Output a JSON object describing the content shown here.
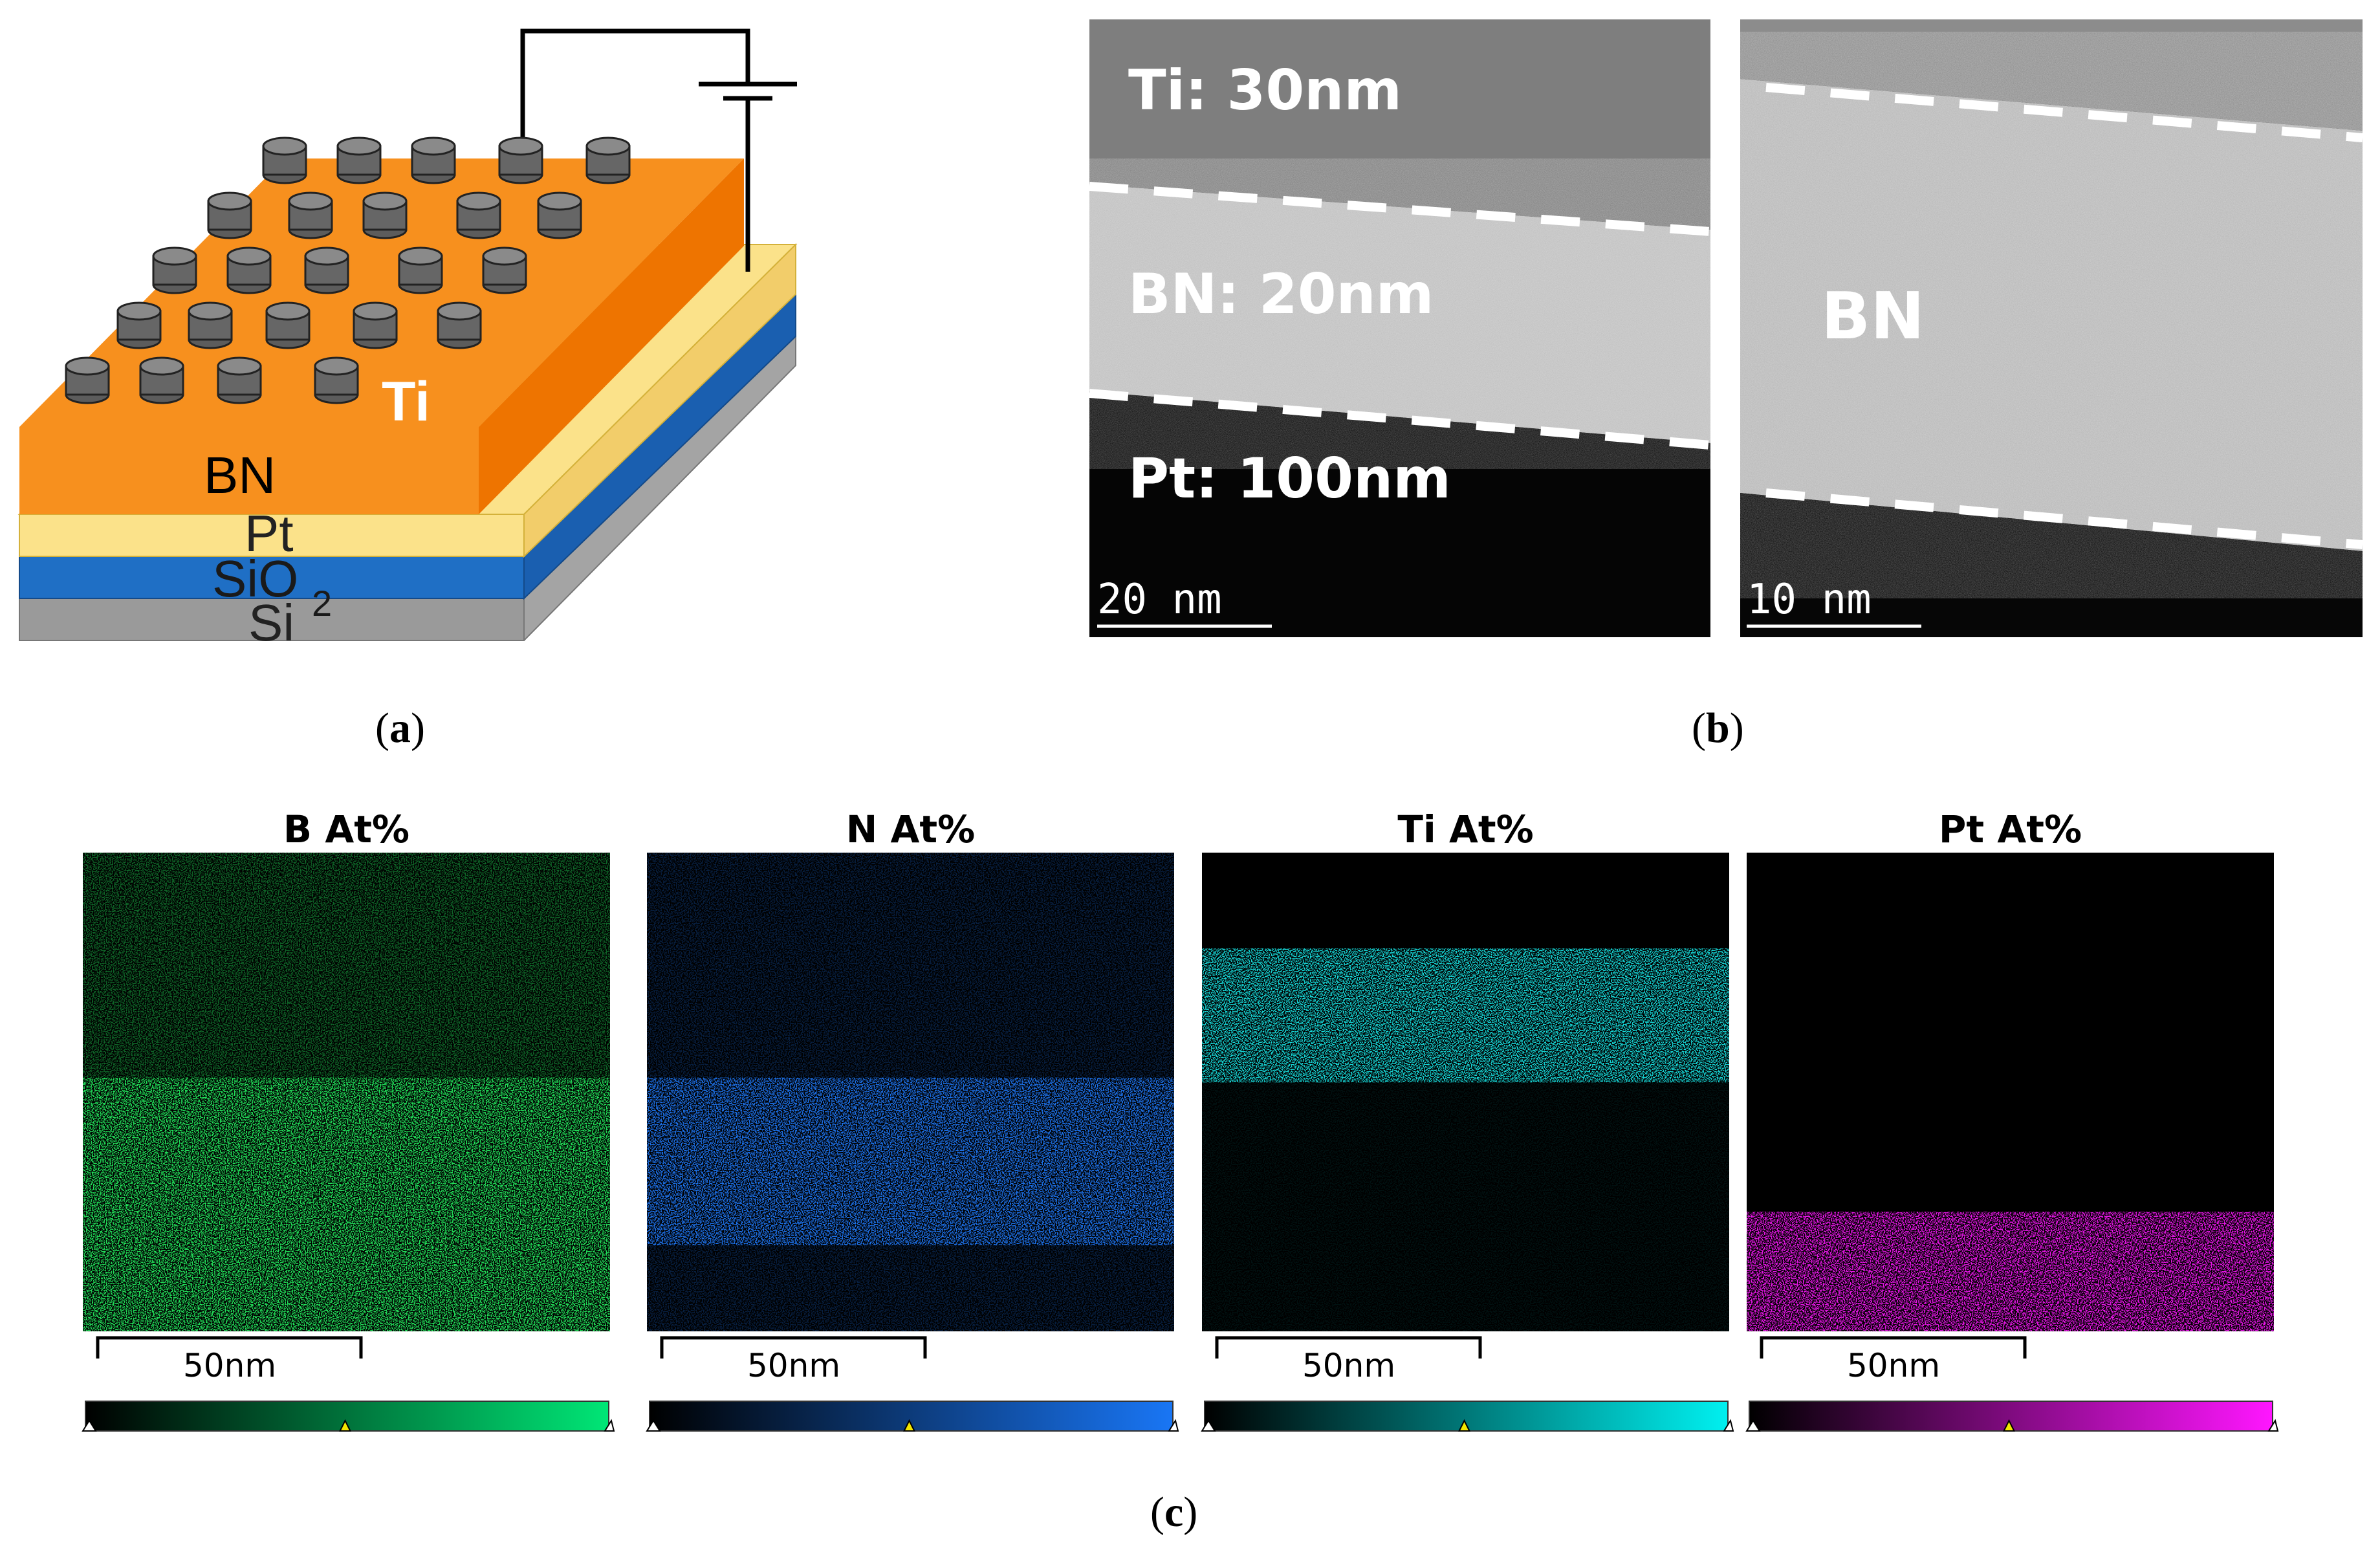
{
  "panel_a": {
    "labels": {
      "top_layer": "BN",
      "electrode": "Ti",
      "bottom_electrode": "Pt",
      "oxide": "SiO",
      "oxide_subscript": "2",
      "substrate": "Si"
    },
    "colors": {
      "bn": "#f7901e",
      "pt": "#fbe28a",
      "sio2": "#1f6fc5",
      "si": "#9a9a9a",
      "pad": "#6b6b6b"
    },
    "caption": "a"
  },
  "panel_b": {
    "left_image": {
      "label_top": "Ti: 30nm",
      "label_middle": "BN: 20nm",
      "label_bottom": "Pt: 100nm",
      "scale": "20 nm"
    },
    "right_image": {
      "label": "BN",
      "scale": "10 nm"
    },
    "caption": "b"
  },
  "panel_c": {
    "maps": [
      {
        "title": "B At%",
        "scale": "50nm",
        "color": "#22e05a",
        "scale_gradient_end": "#00e676"
      },
      {
        "title": "N At%",
        "scale": "50nm",
        "color": "#1f6fe6",
        "scale_gradient_end": "#1976f5"
      },
      {
        "title": "Ti At%",
        "scale": "50nm",
        "color": "#18d6d6",
        "scale_gradient_end": "#00f0f0"
      },
      {
        "title": "Pt At%",
        "scale": "50nm",
        "color": "#ea18ea",
        "scale_gradient_end": "#ff16ff"
      }
    ],
    "caption": "c"
  }
}
